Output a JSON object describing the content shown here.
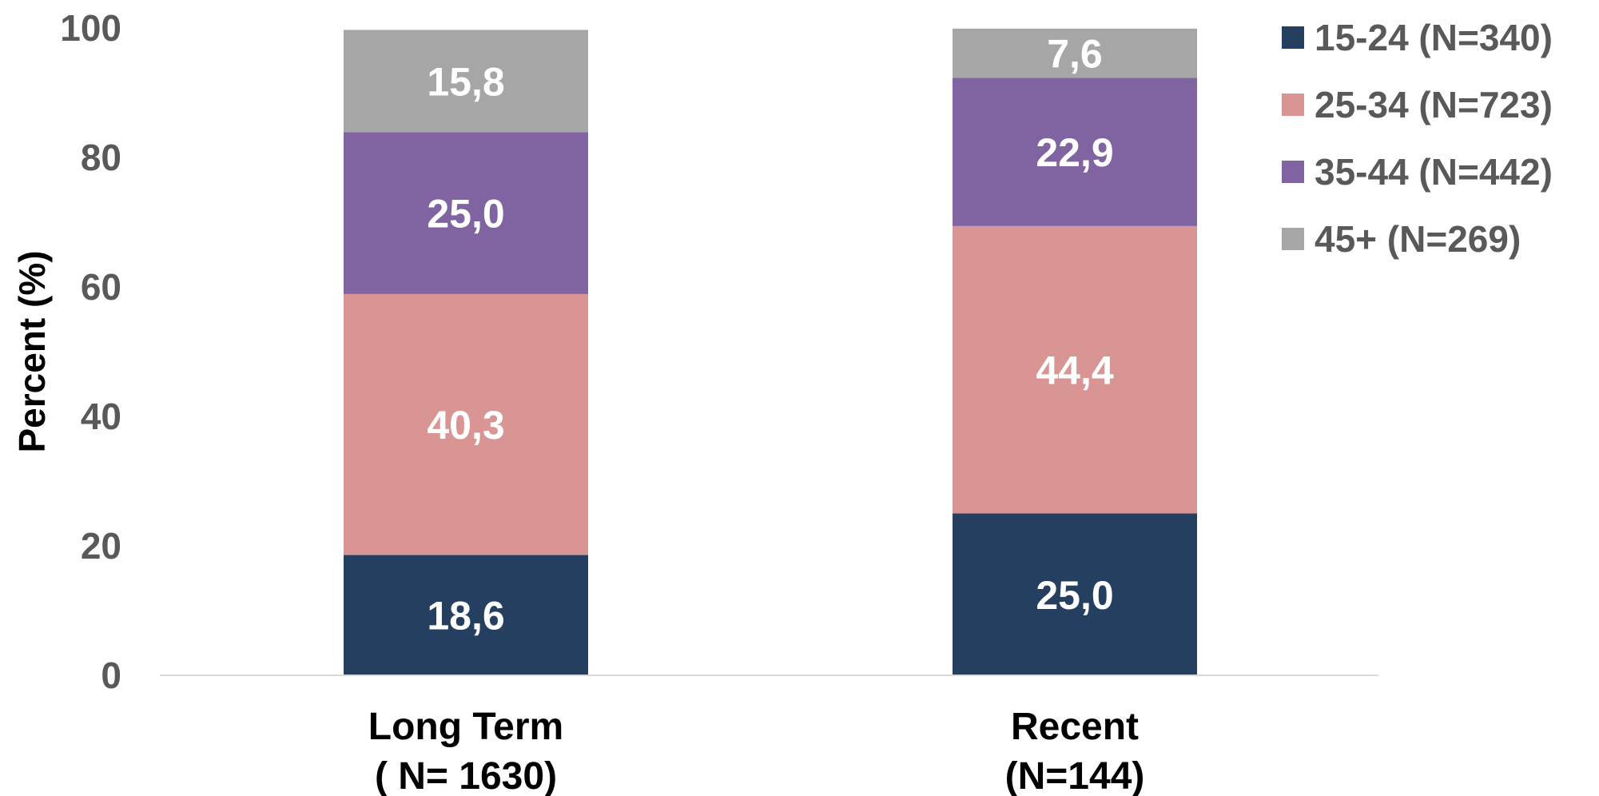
{
  "chart_data": {
    "type": "bar",
    "stacked": true,
    "categories": [
      [
        "Long Term",
        "( N= 1630)"
      ],
      [
        "Recent",
        "(N=144)"
      ]
    ],
    "series": [
      {
        "name": "15-24 (N=340)",
        "color": "#243f60",
        "values": [
          18.6,
          25.0
        ],
        "labels": [
          "18,6",
          "25,0"
        ]
      },
      {
        "name": "25-34 (N=723)",
        "color": "#d99594",
        "values": [
          40.3,
          44.4
        ],
        "labels": [
          "40,3",
          "44,4"
        ]
      },
      {
        "name": "35-44 (N=442)",
        "color": "#8064a2",
        "values": [
          25.0,
          22.9
        ],
        "labels": [
          "25,0",
          "22,9"
        ]
      },
      {
        "name": "45+ (N=269)",
        "color": "#a6a6a6",
        "values": [
          15.8,
          7.6
        ],
        "labels": [
          "15,8",
          "7,6"
        ]
      }
    ],
    "ylabel": "Percent (%)",
    "ylim": [
      0,
      100
    ],
    "yticks": [
      0,
      20,
      40,
      60,
      80,
      100
    ],
    "grid": false,
    "legend_position": "top-right"
  }
}
